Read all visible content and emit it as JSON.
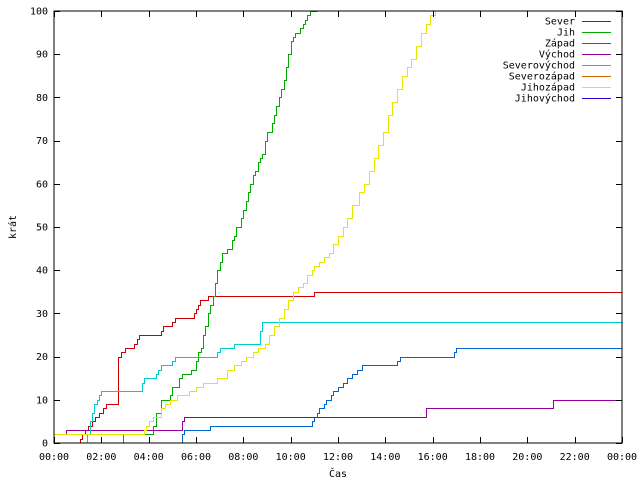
{
  "chart_data": {
    "type": "line",
    "xlabel": "Čas",
    "ylabel": "krát",
    "x_unit": "hours",
    "xlim": [
      0,
      24
    ],
    "ylim": [
      0,
      100
    ],
    "x_ticks": [
      {
        "v": 0,
        "label": "00:00"
      },
      {
        "v": 2,
        "label": "02:00"
      },
      {
        "v": 4,
        "label": "04:00"
      },
      {
        "v": 6,
        "label": "06:00"
      },
      {
        "v": 8,
        "label": "08:00"
      },
      {
        "v": 10,
        "label": "10:00"
      },
      {
        "v": 12,
        "label": "12:00"
      },
      {
        "v": 14,
        "label": "14:00"
      },
      {
        "v": 16,
        "label": "16:00"
      },
      {
        "v": 18,
        "label": "18:00"
      },
      {
        "v": 20,
        "label": "20:00"
      },
      {
        "v": 22,
        "label": "22:00"
      },
      {
        "v": 24,
        "label": "00:00"
      }
    ],
    "y_ticks": [
      {
        "v": 0,
        "label": "0"
      },
      {
        "v": 10,
        "label": "10"
      },
      {
        "v": 20,
        "label": "20"
      },
      {
        "v": 30,
        "label": "30"
      },
      {
        "v": 40,
        "label": "40"
      },
      {
        "v": 50,
        "label": "50"
      },
      {
        "v": 60,
        "label": "60"
      },
      {
        "v": 70,
        "label": "70"
      },
      {
        "v": 80,
        "label": "80"
      },
      {
        "v": 90,
        "label": "90"
      },
      {
        "v": 100,
        "label": "100"
      }
    ],
    "grid": false,
    "legend_position": "top-right",
    "series": [
      {
        "name": "Sever",
        "color": "#cc0000",
        "x": [
          1.0,
          1.1,
          1.2,
          1.3,
          1.45,
          1.6,
          1.75,
          1.9,
          2.05,
          2.2,
          2.7,
          2.85,
          3.0,
          3.4,
          3.5,
          3.6,
          4.5,
          4.6,
          5.0,
          5.1,
          5.9,
          6.0,
          6.1,
          6.15,
          6.2,
          6.25,
          6.3,
          6.5,
          6.6,
          6.7,
          10.9,
          11.0,
          24.0
        ],
        "y": [
          0,
          1,
          2,
          3,
          4,
          5,
          6,
          7,
          8,
          9,
          20,
          21,
          22,
          23,
          24,
          25,
          26,
          27,
          28,
          29,
          30,
          31,
          32,
          33,
          33,
          33,
          33,
          34,
          34,
          34,
          34,
          35,
          35
        ]
      },
      {
        "name": "Jih",
        "color": "#00aa00",
        "x": [
          2.8,
          2.9,
          4.0,
          4.2,
          4.3,
          4.5,
          4.9,
          5.0,
          5.3,
          5.4,
          5.7,
          5.8,
          6.0,
          6.1,
          6.2,
          6.3,
          6.4,
          6.5,
          6.6,
          6.7,
          6.8,
          6.9,
          7.0,
          7.1,
          7.3,
          7.5,
          7.6,
          7.7,
          7.9,
          8.0,
          8.1,
          8.2,
          8.3,
          8.4,
          8.5,
          8.6,
          8.7,
          8.8,
          8.9,
          9.0,
          9.2,
          9.3,
          9.4,
          9.5,
          9.6,
          9.7,
          9.8,
          9.9,
          10.0,
          10.1,
          10.2,
          10.4,
          10.5,
          10.6,
          10.7,
          10.8,
          10.9,
          11.0,
          11.1
        ],
        "y": [
          0,
          2,
          2,
          4,
          7,
          10,
          11,
          13,
          15,
          16,
          16,
          17,
          19,
          21,
          22,
          25,
          27,
          30,
          32,
          34,
          37,
          40,
          42,
          44,
          45,
          47,
          48,
          50,
          52,
          54,
          56,
          58,
          60,
          62,
          63,
          65,
          66,
          67,
          70,
          72,
          74,
          76,
          78,
          80,
          82,
          84,
          87,
          90,
          93,
          94,
          95,
          96,
          97,
          98,
          99,
          100,
          100,
          100,
          100
        ]
      },
      {
        "name": "Západ",
        "color": "#0066cc",
        "x": [
          0.0,
          5.4,
          5.5,
          6.4,
          6.6,
          10.8,
          10.9,
          11.0,
          11.1,
          11.2,
          11.4,
          11.5,
          11.7,
          11.8,
          12.0,
          12.2,
          12.4,
          12.6,
          12.8,
          13.0,
          14.4,
          14.5,
          14.6,
          16.9,
          17.0,
          24.0
        ],
        "y": [
          0,
          2,
          3,
          3,
          4,
          4,
          5,
          6,
          7,
          8,
          9,
          10,
          11,
          12,
          13,
          14,
          15,
          16,
          17,
          18,
          18,
          19,
          20,
          21,
          22,
          22
        ]
      },
      {
        "name": "Východ",
        "color": "#990099",
        "x": [
          0.0,
          0.5,
          0.6,
          5.4,
          5.5,
          15.6,
          15.7,
          21.0,
          21.1,
          24.0
        ],
        "y": [
          2,
          3,
          3,
          5,
          6,
          6,
          8,
          8,
          10,
          10
        ]
      },
      {
        "name": "Severovýchod",
        "color": "#00cccc",
        "x": [
          1.3,
          1.4,
          1.5,
          1.6,
          1.7,
          1.8,
          1.9,
          2.0,
          3.6,
          3.7,
          3.8,
          4.3,
          4.4,
          4.5,
          5.0,
          5.1,
          6.9,
          7.0,
          7.5,
          7.6,
          8.6,
          8.7,
          8.8,
          24.0
        ],
        "y": [
          0,
          2,
          5,
          7,
          9,
          10,
          11,
          12,
          12,
          14,
          15,
          16,
          17,
          18,
          19,
          20,
          21,
          22,
          22,
          23,
          23,
          26,
          28,
          28
        ]
      },
      {
        "name": "Severozápad",
        "color": "#cc6600",
        "x": [],
        "y": []
      },
      {
        "name": "Jihozápad",
        "color": "#e6e600",
        "x": [
          0.0,
          0.4,
          0.5,
          3.8,
          3.9,
          4.0,
          4.2,
          4.5,
          4.7,
          4.9,
          5.2,
          5.5,
          5.7,
          6.0,
          6.3,
          6.5,
          6.9,
          7.3,
          7.6,
          7.9,
          8.1,
          8.4,
          8.6,
          8.9,
          9.1,
          9.3,
          9.5,
          9.7,
          9.9,
          10.1,
          10.3,
          10.5,
          10.7,
          10.9,
          11.0,
          11.2,
          11.4,
          11.6,
          11.8,
          12.0,
          12.2,
          12.4,
          12.6,
          12.9,
          13.1,
          13.3,
          13.5,
          13.7,
          13.9,
          14.1,
          14.3,
          14.5,
          14.7,
          14.9,
          15.1,
          15.3,
          15.5,
          15.7,
          15.9,
          16.1
        ],
        "y": [
          2,
          2,
          2,
          3,
          4,
          5,
          6,
          8,
          9,
          10,
          11,
          11,
          12,
          13,
          14,
          14,
          15,
          17,
          18,
          19,
          20,
          21,
          22,
          23,
          25,
          27,
          29,
          31,
          33,
          35,
          36,
          37,
          39,
          40,
          41,
          42,
          43,
          44,
          46,
          48,
          50,
          52,
          55,
          58,
          60,
          63,
          66,
          69,
          72,
          76,
          79,
          82,
          85,
          87,
          89,
          92,
          95,
          97,
          99,
          100
        ]
      },
      {
        "name": "Jihovýchod",
        "color": "#3300cc",
        "x": [],
        "y": []
      }
    ]
  }
}
